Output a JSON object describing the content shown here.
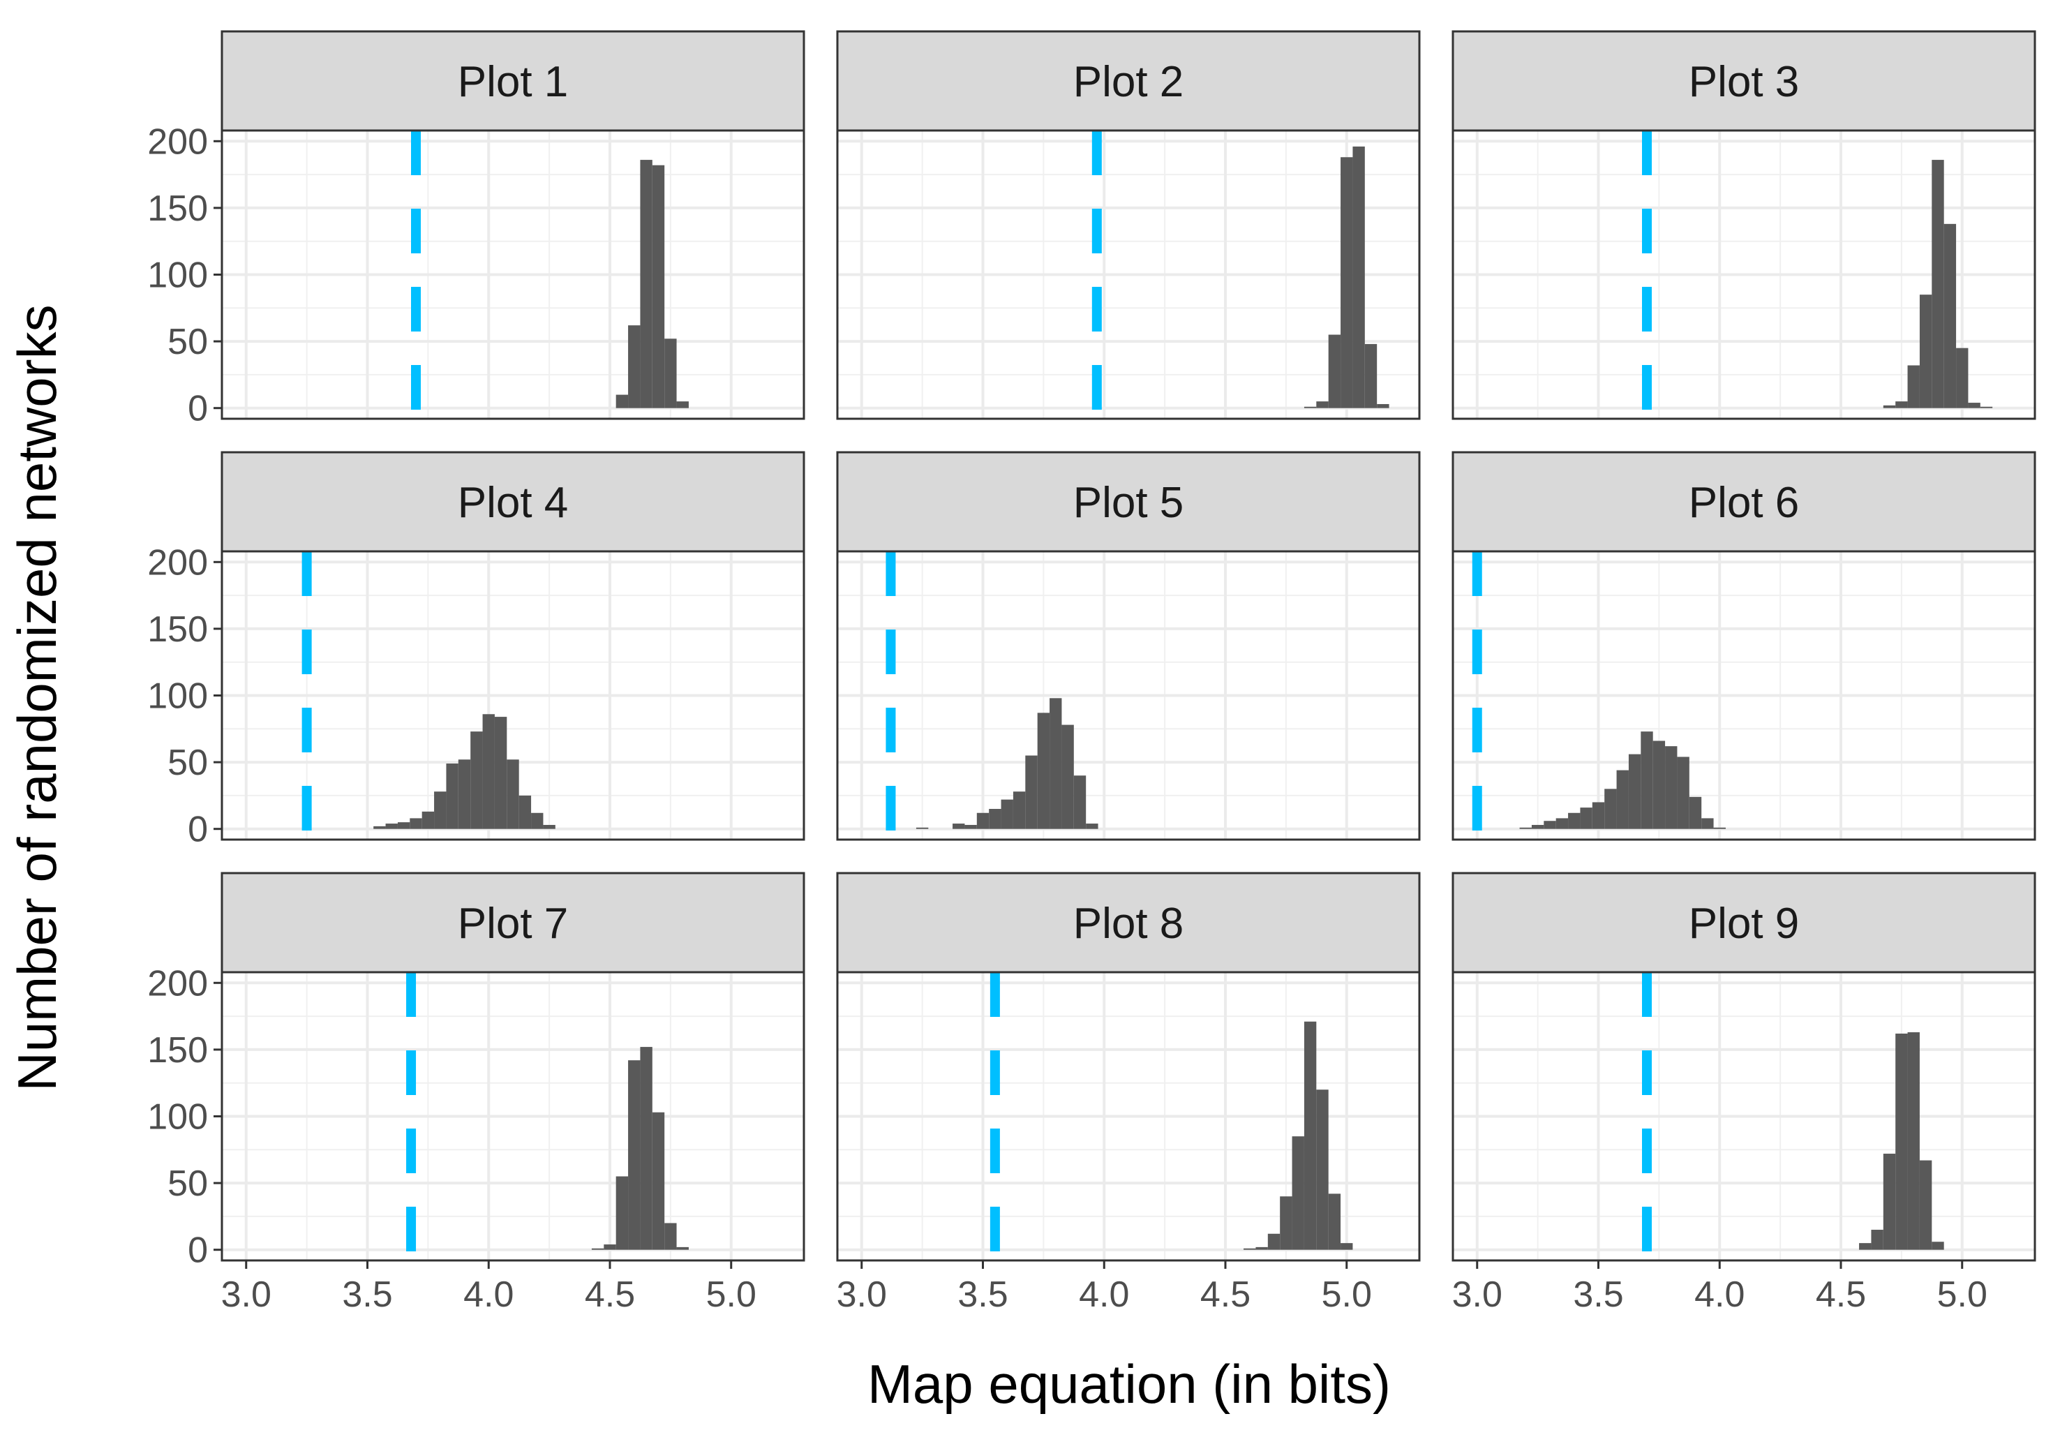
{
  "chart_data": {
    "type": "bar",
    "xlabel": "Map equation (in bits)",
    "ylabel": "Number of randomized networks",
    "xlim": [
      2.9,
      5.3
    ],
    "ylim": [
      -8,
      208
    ],
    "x_ticks": [
      3.0,
      3.5,
      4.0,
      4.5,
      5.0
    ],
    "x_tick_labels": [
      "3.0",
      "3.5",
      "4.0",
      "4.5",
      "5.0"
    ],
    "y_ticks": [
      0,
      50,
      100,
      150,
      200
    ],
    "y_tick_labels": [
      "0",
      "50",
      "100",
      "150",
      "200"
    ],
    "grid": true,
    "bar_color": "#595959",
    "reference_line_color": "#00BFFF",
    "reference_line_style": "dashed",
    "panels": [
      {
        "title": "Plot 1",
        "observed": 3.7,
        "bin_width": 0.05,
        "bins": [
          {
            "x": 4.55,
            "count": 10
          },
          {
            "x": 4.6,
            "count": 62
          },
          {
            "x": 4.65,
            "count": 186
          },
          {
            "x": 4.7,
            "count": 182
          },
          {
            "x": 4.75,
            "count": 52
          },
          {
            "x": 4.8,
            "count": 5
          }
        ]
      },
      {
        "title": "Plot 2",
        "observed": 3.97,
        "bin_width": 0.05,
        "bins": [
          {
            "x": 4.85,
            "count": 1
          },
          {
            "x": 4.9,
            "count": 5
          },
          {
            "x": 4.95,
            "count": 55
          },
          {
            "x": 5.0,
            "count": 188
          },
          {
            "x": 5.05,
            "count": 196
          },
          {
            "x": 5.1,
            "count": 48
          },
          {
            "x": 5.15,
            "count": 3
          }
        ]
      },
      {
        "title": "Plot 3",
        "observed": 3.7,
        "bin_width": 0.05,
        "bins": [
          {
            "x": 4.7,
            "count": 2
          },
          {
            "x": 4.75,
            "count": 5
          },
          {
            "x": 4.8,
            "count": 32
          },
          {
            "x": 4.85,
            "count": 85
          },
          {
            "x": 4.9,
            "count": 186
          },
          {
            "x": 4.95,
            "count": 138
          },
          {
            "x": 5.0,
            "count": 45
          },
          {
            "x": 5.05,
            "count": 4
          },
          {
            "x": 5.1,
            "count": 1
          }
        ]
      },
      {
        "title": "Plot 4",
        "observed": 3.25,
        "bin_width": 0.05,
        "bins": [
          {
            "x": 3.55,
            "count": 2
          },
          {
            "x": 3.6,
            "count": 4
          },
          {
            "x": 3.65,
            "count": 5
          },
          {
            "x": 3.7,
            "count": 8
          },
          {
            "x": 3.75,
            "count": 13
          },
          {
            "x": 3.8,
            "count": 28
          },
          {
            "x": 3.85,
            "count": 49
          },
          {
            "x": 3.9,
            "count": 52
          },
          {
            "x": 3.95,
            "count": 73
          },
          {
            "x": 4.0,
            "count": 86
          },
          {
            "x": 4.05,
            "count": 84
          },
          {
            "x": 4.1,
            "count": 52
          },
          {
            "x": 4.15,
            "count": 25
          },
          {
            "x": 4.2,
            "count": 12
          },
          {
            "x": 4.25,
            "count": 3
          }
        ]
      },
      {
        "title": "Plot 5",
        "observed": 3.12,
        "bin_width": 0.05,
        "bins": [
          {
            "x": 3.25,
            "count": 1
          },
          {
            "x": 3.4,
            "count": 4
          },
          {
            "x": 3.45,
            "count": 3
          },
          {
            "x": 3.5,
            "count": 12
          },
          {
            "x": 3.55,
            "count": 15
          },
          {
            "x": 3.6,
            "count": 22
          },
          {
            "x": 3.65,
            "count": 28
          },
          {
            "x": 3.7,
            "count": 55
          },
          {
            "x": 3.75,
            "count": 87
          },
          {
            "x": 3.8,
            "count": 98
          },
          {
            "x": 3.85,
            "count": 78
          },
          {
            "x": 3.9,
            "count": 40
          },
          {
            "x": 3.95,
            "count": 4
          }
        ]
      },
      {
        "title": "Plot 6",
        "observed": 3.0,
        "bin_width": 0.05,
        "bins": [
          {
            "x": 3.2,
            "count": 1
          },
          {
            "x": 3.25,
            "count": 3
          },
          {
            "x": 3.3,
            "count": 6
          },
          {
            "x": 3.35,
            "count": 8
          },
          {
            "x": 3.4,
            "count": 12
          },
          {
            "x": 3.45,
            "count": 16
          },
          {
            "x": 3.5,
            "count": 20
          },
          {
            "x": 3.55,
            "count": 30
          },
          {
            "x": 3.6,
            "count": 44
          },
          {
            "x": 3.65,
            "count": 56
          },
          {
            "x": 3.7,
            "count": 73
          },
          {
            "x": 3.75,
            "count": 66
          },
          {
            "x": 3.8,
            "count": 62
          },
          {
            "x": 3.85,
            "count": 54
          },
          {
            "x": 3.9,
            "count": 24
          },
          {
            "x": 3.95,
            "count": 8
          },
          {
            "x": 4.0,
            "count": 1
          }
        ]
      },
      {
        "title": "Plot 7",
        "observed": 3.68,
        "bin_width": 0.05,
        "bins": [
          {
            "x": 4.45,
            "count": 1
          },
          {
            "x": 4.5,
            "count": 4
          },
          {
            "x": 4.55,
            "count": 55
          },
          {
            "x": 4.6,
            "count": 142
          },
          {
            "x": 4.65,
            "count": 152
          },
          {
            "x": 4.7,
            "count": 103
          },
          {
            "x": 4.75,
            "count": 20
          },
          {
            "x": 4.8,
            "count": 2
          }
        ]
      },
      {
        "title": "Plot 8",
        "observed": 3.55,
        "bin_width": 0.05,
        "bins": [
          {
            "x": 4.6,
            "count": 1
          },
          {
            "x": 4.65,
            "count": 2
          },
          {
            "x": 4.7,
            "count": 12
          },
          {
            "x": 4.75,
            "count": 40
          },
          {
            "x": 4.8,
            "count": 85
          },
          {
            "x": 4.85,
            "count": 171
          },
          {
            "x": 4.9,
            "count": 120
          },
          {
            "x": 4.95,
            "count": 42
          },
          {
            "x": 5.0,
            "count": 5
          }
        ]
      },
      {
        "title": "Plot 9",
        "observed": 3.7,
        "bin_width": 0.05,
        "bins": [
          {
            "x": 4.6,
            "count": 5
          },
          {
            "x": 4.65,
            "count": 15
          },
          {
            "x": 4.7,
            "count": 72
          },
          {
            "x": 4.75,
            "count": 162
          },
          {
            "x": 4.8,
            "count": 163
          },
          {
            "x": 4.85,
            "count": 67
          },
          {
            "x": 4.9,
            "count": 6
          }
        ]
      }
    ]
  }
}
